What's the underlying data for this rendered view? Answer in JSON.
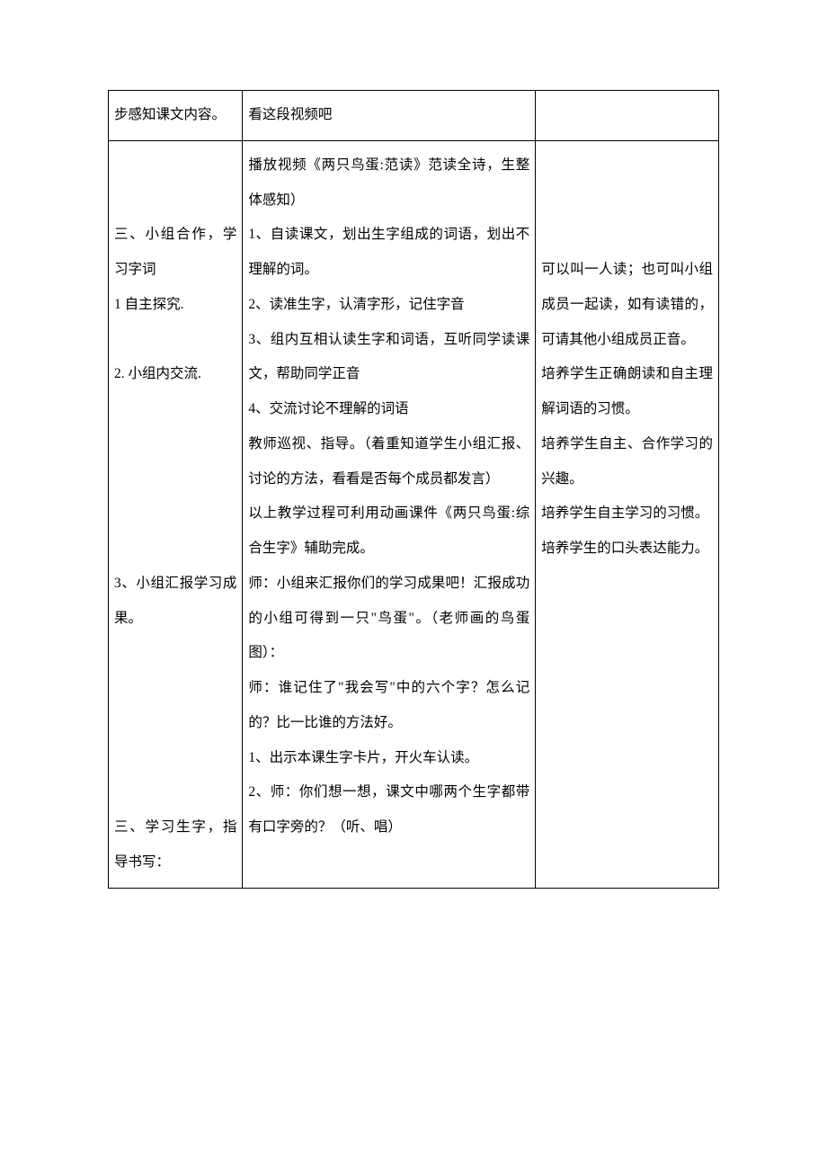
{
  "table": {
    "row1": {
      "col1": "步感知课文内容。",
      "col2": "看这段视频吧",
      "col3": ""
    },
    "row2": {
      "col1_p1": "三、小组合作，学习字词",
      "col1_p2": "1 自主探究.",
      "col1_p3": "2. 小组内交流.",
      "col1_p4": "3、小组汇报学习成果。",
      "col1_p5": "三、学习生字，指导书写：",
      "col2_p1": "播放视频《两只鸟蛋:范读》范读全诗，生整体感知）",
      "col2_p2": "1、自读课文，划出生字组成的词语，划出不理解的词。",
      "col2_p3": "2、读准生字，认清字形，记住字音",
      "col2_p4": "3、组内互相认读生字和词语，互听同学读课文，帮助同学正音",
      "col2_p5": "4、交流讨论不理解的词语",
      "col2_p6": "教师巡视、指导。（着重知道学生小组汇报、讨论的方法，看看是否每个成员都发言）",
      "col2_p7": "以上教学过程可利用动画课件《两只鸟蛋:综合生字》辅助完成。",
      "col2_p8": "师：小组来汇报你们的学习成果吧！汇报成功的小组可得到一只\"鸟蛋\"。（老师画的鸟蛋图）：",
      "col2_p9": "师：谁记住了\"我会写\"中的六个字？怎么记的？比一比谁的方法好。",
      "col2_p10": "1、出示本课生字卡片，开火车认读。",
      "col2_p11": "2、师：你们想一想，课文中哪两个生字都带有口字旁的？（听、唱）",
      "col3_p1": "可以叫一人读；也可叫小组成员一起读，如有读错的，可请其他小组成员正音。",
      "col3_p2": "培养学生正确朗读和自主理解词语的习惯。",
      "col3_p3": "培养学生自主、合作学习的兴趣。",
      "col3_p4": "培养学生自主学习的习惯。",
      "col3_p5": "培养学生的口头表达能力。"
    }
  }
}
